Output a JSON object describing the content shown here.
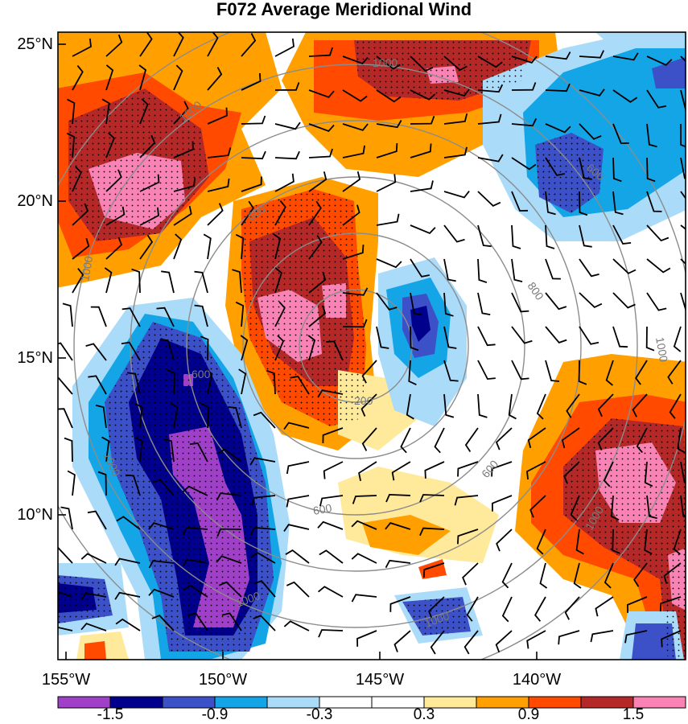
{
  "title": "F072 Average Meridional Wind",
  "lat_labels": [
    "25°N",
    "20°N",
    "15°N",
    "10°N"
  ],
  "lon_labels": [
    "155°W",
    "150°W",
    "145°W",
    "140°W"
  ],
  "colorbar": {
    "colors": [
      "#a040c8",
      "#00008c",
      "#3c50c8",
      "#14a5e6",
      "#aadcfa",
      "#ffffff",
      "#ffffff",
      "#ffe99a",
      "#ffa000",
      "#ff4a00",
      "#b42828",
      "#f883b4"
    ],
    "labels": [
      "-1.5",
      "-0.9",
      "-0.3",
      "0.3",
      "0.9",
      "1.5"
    ]
  },
  "contour_labels": [
    "1000",
    "1000",
    "1000",
    "1000",
    "800",
    "600",
    "600",
    "600",
    "600",
    "600",
    "1000",
    "1000",
    "1000",
    "1000",
    "200"
  ],
  "colors": {
    "neg_strong": "#00008c",
    "neg_purple": "#a040c8",
    "neg_med": "#3c50c8",
    "neg_light": "#14a5e6",
    "neg_pale": "#aadcfa",
    "pos_pale": "#ffe99a",
    "pos_orange": "#ffa000",
    "pos_red": "#ff4a00",
    "pos_dark": "#b42828",
    "pos_pink": "#f883b4",
    "contour": "#8c8c8c"
  }
}
